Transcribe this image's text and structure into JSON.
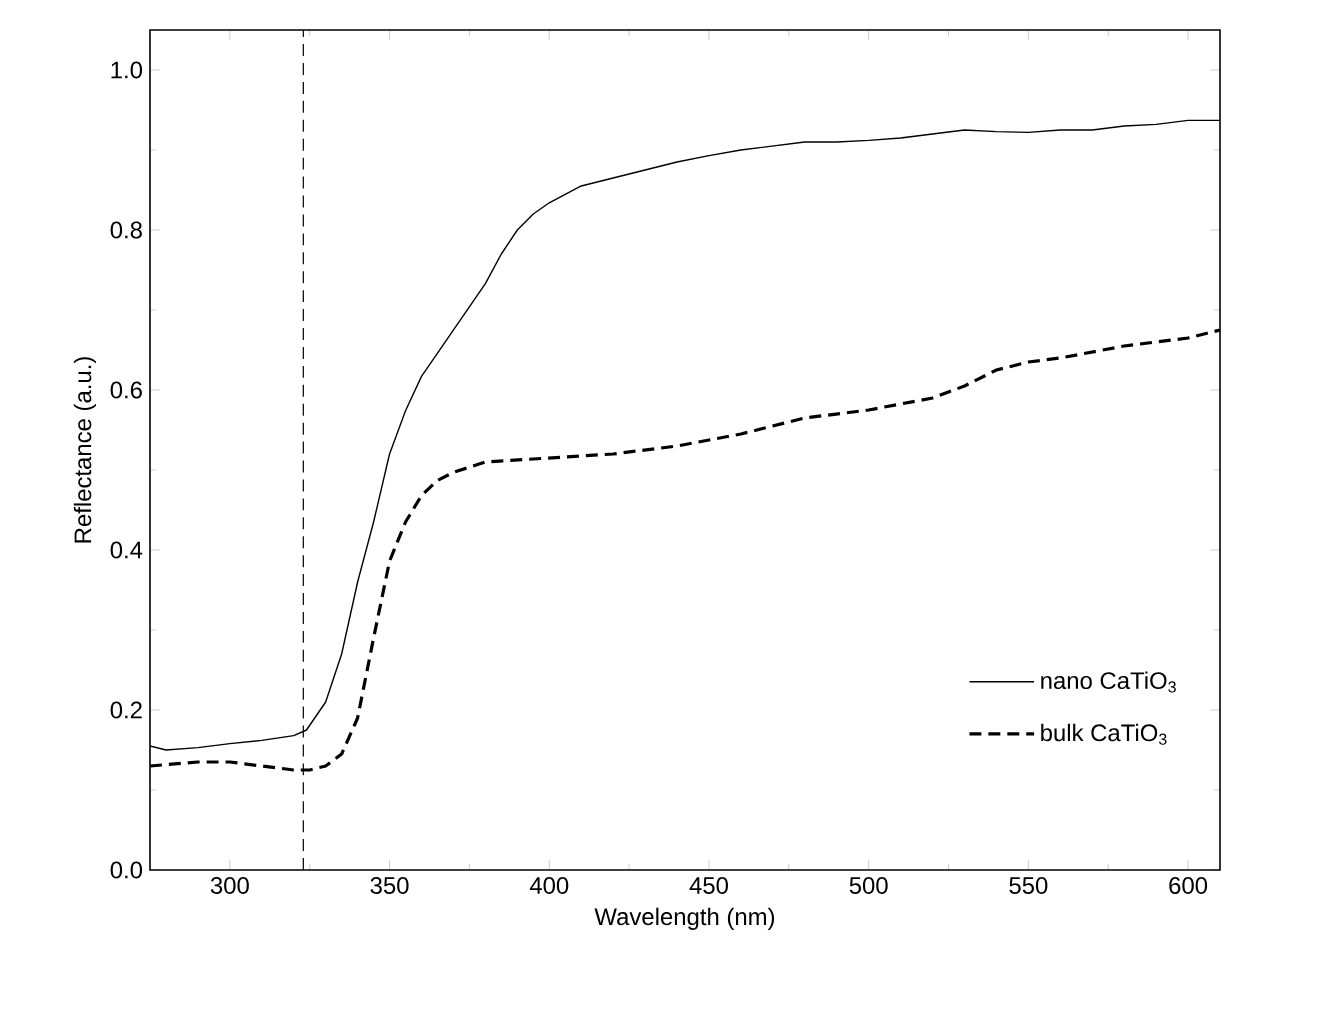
{
  "chart_data": {
    "type": "line",
    "xlabel": "Wavelength (nm)",
    "ylabel": "Reflectance (a.u.)",
    "xlim": [
      275,
      610
    ],
    "ylim": [
      0,
      1.05
    ],
    "xticks": [
      300,
      350,
      400,
      450,
      500,
      550,
      600
    ],
    "yticks": [
      {
        "value": 0,
        "label": "0.0"
      },
      0.2,
      0.4,
      0.6,
      0.8,
      {
        "value": 1,
        "label": "1.0"
      }
    ],
    "legend": "bottom right",
    "series": [
      {
        "name": "nano CaTiO$_{3}$",
        "color": "#000000",
        "line_style": "solid",
        "x": [
          275,
          280,
          290,
          300,
          310,
          320,
          324,
          330,
          335,
          340,
          345,
          350,
          355,
          360,
          370,
          380,
          385,
          390,
          395,
          400,
          410,
          420,
          430,
          440,
          450,
          460,
          470,
          480,
          490,
          500,
          510,
          520,
          530,
          540,
          550,
          560,
          570,
          580,
          590,
          600,
          610
        ],
        "values": [
          0.155,
          0.15,
          0.153,
          0.158,
          0.162,
          0.168,
          0.175,
          0.21,
          0.27,
          0.36,
          0.435,
          0.52,
          0.574,
          0.617,
          0.675,
          0.733,
          0.77,
          0.8,
          0.82,
          0.834,
          0.855,
          0.865,
          0.875,
          0.885,
          0.893,
          0.9,
          0.905,
          0.91,
          0.91,
          0.912,
          0.915,
          0.92,
          0.925,
          0.923,
          0.922,
          0.925,
          0.925,
          0.93,
          0.932,
          0.937,
          0.937
        ]
      },
      {
        "name": "bulk CaTiO$_{3}$",
        "color": "#000000",
        "line_style": "dashed",
        "x": [
          275,
          290,
          300,
          310,
          320,
          325,
          330,
          335,
          340,
          345,
          350,
          355,
          360,
          365,
          370,
          380,
          400,
          420,
          440,
          460,
          480,
          500,
          520,
          530,
          540,
          550,
          560,
          580,
          600,
          610
        ],
        "values": [
          0.13,
          0.135,
          0.135,
          0.13,
          0.125,
          0.125,
          0.13,
          0.145,
          0.19,
          0.29,
          0.386,
          0.435,
          0.468,
          0.487,
          0.497,
          0.51,
          0.515,
          0.52,
          0.53,
          0.545,
          0.565,
          0.575,
          0.59,
          0.605,
          0.625,
          0.635,
          0.64,
          0.655,
          0.665,
          0.675
        ]
      }
    ],
    "ref_lines": [
      {
        "axis": "x",
        "value": 323,
        "color": "#000000",
        "line_style": "dashed"
      }
    ]
  }
}
